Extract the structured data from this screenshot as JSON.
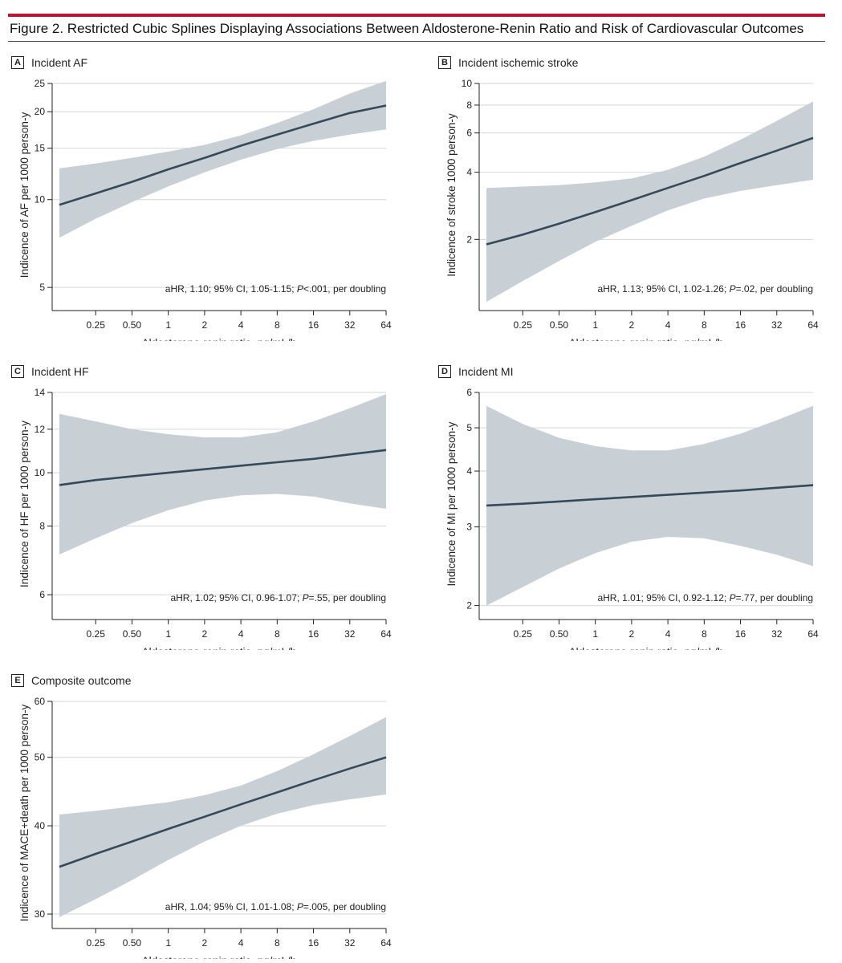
{
  "figure": {
    "title": "Figure 2. Restricted Cubic Splines Displaying Associations Between Aldosterone-Renin Ratio and Risk of Cardiovascular Outcomes",
    "colors": {
      "accent_rule": "#c8102e",
      "band": "#c8cfd5",
      "line": "#34495a",
      "grid": "#d6d6d6"
    }
  },
  "chart_data": [
    {
      "type": "line",
      "panel_letter": "A",
      "panel_title": "Incident AF",
      "xlabel": "Aldosterone-renin ratio, ng/mL/h",
      "ylabel": "Indicence of AF per 1000 person-y",
      "x_scale": "log2",
      "y_scale": "log",
      "xlim": [
        0.125,
        64
      ],
      "ylim": [
        4.3,
        25
      ],
      "x_ticks": [
        "0.25",
        "0.50",
        "1",
        "2",
        "4",
        "8",
        "16",
        "32",
        "64"
      ],
      "y_ticks": [
        5,
        10,
        15,
        20,
        25
      ],
      "grid": true,
      "annotation": {
        "pre": "aHR, 1.10; 95% CI, 1.05-1.15; ",
        "p": "P",
        "post": "<.001, per doubling"
      },
      "series": [
        {
          "x": [
            0.125,
            0.25,
            0.5,
            1,
            2,
            4,
            8,
            16,
            32,
            64
          ],
          "estimate": [
            9.6,
            10.5,
            11.5,
            12.7,
            13.9,
            15.3,
            16.7,
            18.2,
            19.8,
            21.0
          ],
          "lower": [
            7.4,
            8.6,
            9.8,
            11.1,
            12.4,
            13.7,
            14.9,
            15.9,
            16.7,
            17.4
          ],
          "upper": [
            12.8,
            13.3,
            13.9,
            14.6,
            15.4,
            16.6,
            18.3,
            20.4,
            23.1,
            25.5
          ]
        }
      ]
    },
    {
      "type": "line",
      "panel_letter": "B",
      "panel_title": "Incident ischemic stroke",
      "xlabel": "Aldosterone-renin ratio, ng/mL/h",
      "ylabel": "Indicence of stroke 1000 person-y",
      "x_scale": "log2",
      "y_scale": "log",
      "xlim": [
        0.125,
        64
      ],
      "ylim": [
        1,
        10
      ],
      "x_ticks": [
        "0.25",
        "0.50",
        "1",
        "2",
        "4",
        "8",
        "16",
        "32",
        "64"
      ],
      "y_ticks": [
        2,
        4,
        6,
        8,
        10
      ],
      "grid": true,
      "annotation": {
        "pre": "aHR, 1.13; 95% CI, 1.02-1.26; ",
        "p": "P",
        "post": "=.02, per doubling"
      },
      "series": [
        {
          "x": [
            0.125,
            0.25,
            0.5,
            1,
            2,
            4,
            8,
            16,
            32,
            64
          ],
          "estimate": [
            1.9,
            2.1,
            2.35,
            2.65,
            3.0,
            3.4,
            3.85,
            4.4,
            5.0,
            5.7
          ],
          "lower": [
            1.05,
            1.3,
            1.6,
            1.95,
            2.3,
            2.7,
            3.05,
            3.3,
            3.5,
            3.7
          ],
          "upper": [
            3.4,
            3.45,
            3.5,
            3.6,
            3.75,
            4.1,
            4.7,
            5.6,
            6.8,
            8.3
          ]
        }
      ]
    },
    {
      "type": "line",
      "panel_letter": "C",
      "panel_title": "Incident HF",
      "xlabel": "Aldosterone-renin ratio, ng/mL/h",
      "ylabel": "Indicence of HF per 1000 person-y",
      "x_scale": "log2",
      "y_scale": "log",
      "xlim": [
        0.125,
        64
      ],
      "ylim": [
        5.5,
        14
      ],
      "x_ticks": [
        "0.25",
        "0.50",
        "1",
        "2",
        "4",
        "8",
        "16",
        "32",
        "64"
      ],
      "y_ticks": [
        6,
        8,
        10,
        12,
        14
      ],
      "grid": true,
      "annotation": {
        "pre": "aHR, 1.02; 95% CI, 0.96-1.07; ",
        "p": "P",
        "post": "=.55, per doubling"
      },
      "series": [
        {
          "x": [
            0.125,
            0.25,
            0.5,
            1,
            2,
            4,
            8,
            16,
            32,
            64
          ],
          "estimate": [
            9.5,
            9.7,
            9.85,
            10.0,
            10.15,
            10.3,
            10.45,
            10.6,
            10.8,
            11.0
          ],
          "lower": [
            7.1,
            7.6,
            8.1,
            8.55,
            8.9,
            9.1,
            9.15,
            9.05,
            8.8,
            8.6
          ],
          "upper": [
            12.8,
            12.4,
            12.0,
            11.75,
            11.6,
            11.6,
            11.85,
            12.4,
            13.1,
            13.9
          ]
        }
      ]
    },
    {
      "type": "line",
      "panel_letter": "D",
      "panel_title": "Incident MI",
      "xlabel": "Aldosterone-renin ratio, ng/mL/h",
      "ylabel": "Indicence of MI per 1000 person-y",
      "x_scale": "log2",
      "y_scale": "log",
      "xlim": [
        0.125,
        64
      ],
      "ylim": [
        1.9,
        6
      ],
      "x_ticks": [
        "0.25",
        "0.50",
        "1",
        "2",
        "4",
        "8",
        "16",
        "32",
        "64"
      ],
      "y_ticks": [
        2,
        3,
        4,
        5,
        6
      ],
      "grid": true,
      "annotation": {
        "pre": "aHR, 1.01; 95% CI, 0.92-1.12; ",
        "p": "P",
        "post": "=.77, per doubling"
      },
      "series": [
        {
          "x": [
            0.125,
            0.25,
            0.5,
            1,
            2,
            4,
            8,
            16,
            32,
            64
          ],
          "estimate": [
            3.35,
            3.38,
            3.42,
            3.46,
            3.5,
            3.54,
            3.58,
            3.62,
            3.67,
            3.72
          ],
          "lower": [
            2.0,
            2.2,
            2.42,
            2.62,
            2.78,
            2.85,
            2.83,
            2.72,
            2.6,
            2.45
          ],
          "upper": [
            5.6,
            5.1,
            4.75,
            4.55,
            4.45,
            4.45,
            4.6,
            4.85,
            5.2,
            5.6
          ]
        }
      ]
    },
    {
      "type": "line",
      "panel_letter": "E",
      "panel_title": "Composite outcome",
      "xlabel": "Aldosterone-renin ratio, ng/mL/h",
      "ylabel": "Indicence of MACE+death per 1000 person-y",
      "x_scale": "log2",
      "y_scale": "log",
      "xlim": [
        0.125,
        64
      ],
      "ylim": [
        29,
        60
      ],
      "x_ticks": [
        "0.25",
        "0.50",
        "1",
        "2",
        "4",
        "8",
        "16",
        "32",
        "64"
      ],
      "y_ticks": [
        30,
        40,
        50,
        60
      ],
      "grid": true,
      "annotation": {
        "pre": "aHR, 1.04; 95% CI, 1.01-1.08; ",
        "p": "P",
        "post": "=.005, per doubling"
      },
      "series": [
        {
          "x": [
            0.125,
            0.25,
            0.5,
            1,
            2,
            4,
            8,
            16,
            32,
            64
          ],
          "estimate": [
            35.0,
            36.5,
            38.0,
            39.6,
            41.2,
            42.9,
            44.6,
            46.4,
            48.2,
            50.0
          ],
          "lower": [
            29.7,
            31.5,
            33.5,
            35.8,
            38.0,
            40.0,
            41.6,
            42.8,
            43.6,
            44.3
          ],
          "upper": [
            41.5,
            42.0,
            42.6,
            43.2,
            44.2,
            45.6,
            47.8,
            50.5,
            53.6,
            57.0
          ]
        }
      ]
    }
  ]
}
